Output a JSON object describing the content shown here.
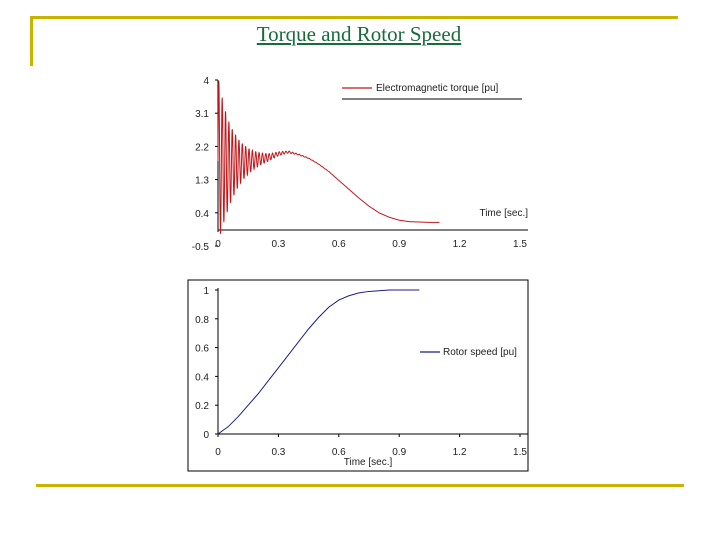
{
  "title": "Torque and Rotor Speed",
  "colors": {
    "frame": "#c8b400",
    "title": "#1a6b3c",
    "torque": "#c0171b",
    "speed": "#1b1f8a"
  },
  "chart_data": [
    {
      "type": "line",
      "series": [
        {
          "name": "Electromagnetic torque [pu]",
          "color": "#c0171b",
          "description_points": {
            "x": [
              0,
              0.05,
              0.1,
              0.15,
              0.2,
              0.25,
              0.3,
              0.35,
              0.4,
              0.45,
              0.5,
              0.55,
              0.6,
              0.65,
              0.7,
              0.75,
              0.8,
              0.85,
              0.9,
              0.95,
              1.0,
              1.05,
              1.1,
              1.5
            ],
            "y": [
              1.8,
              1.7,
              1.75,
              1.8,
              1.85,
              1.9,
              2.0,
              2.05,
              1.98,
              1.88,
              1.72,
              1.52,
              1.28,
              1.04,
              0.8,
              0.58,
              0.4,
              0.28,
              0.2,
              0.16,
              0.15,
              0.14,
              0.14,
              0.14
            ]
          }
        }
      ],
      "xlabel": "Time [sec.]",
      "ylabel": "",
      "xticks": [
        "0",
        "0.3",
        "0.6",
        "0.9",
        "1.2",
        "1.5"
      ],
      "yticks": [
        "4",
        "3.1",
        "2.2",
        "1.3",
        "0.4",
        "-0.5"
      ],
      "xlim": [
        0,
        1.5
      ],
      "ylim": [
        -0.5,
        4
      ],
      "grid": false,
      "legend": "top-right"
    },
    {
      "type": "line",
      "series": [
        {
          "name": "Rotor speed [pu]",
          "color": "#1b1f8a",
          "x": [
            0,
            0.05,
            0.1,
            0.15,
            0.2,
            0.25,
            0.3,
            0.35,
            0.4,
            0.45,
            0.5,
            0.55,
            0.6,
            0.65,
            0.7,
            0.75,
            0.8,
            0.85,
            0.9,
            0.95,
            1.0
          ],
          "y": [
            0,
            0.05,
            0.12,
            0.2,
            0.28,
            0.37,
            0.46,
            0.55,
            0.64,
            0.73,
            0.81,
            0.88,
            0.93,
            0.96,
            0.98,
            0.99,
            0.995,
            1.0,
            1.0,
            1.0,
            1.0
          ]
        }
      ],
      "xlabel": "Time [sec.]",
      "ylabel": "",
      "xticks": [
        "0",
        "0.3",
        "0.6",
        "0.9",
        "1.2",
        "1.5"
      ],
      "yticks": [
        "1",
        "0.8",
        "0.6",
        "0.4",
        "0.2",
        "0"
      ],
      "xlim": [
        0,
        1.5
      ],
      "ylim": [
        0,
        1
      ],
      "grid": false,
      "legend": "right"
    }
  ]
}
